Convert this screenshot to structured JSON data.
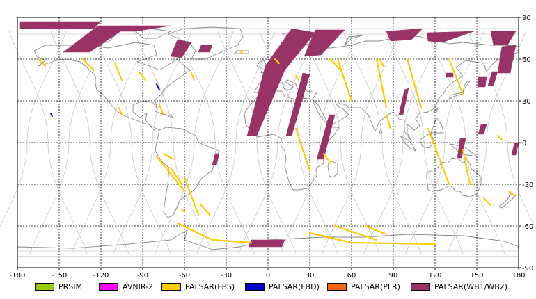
{
  "map": {
    "lon_ticks": [
      -180,
      -150,
      -120,
      -90,
      -60,
      -30,
      0,
      30,
      60,
      90,
      120,
      150,
      180
    ],
    "lat_ticks": [
      90,
      60,
      30,
      0,
      -30,
      -60,
      -90
    ],
    "lon_range": [
      -180,
      180
    ],
    "lat_range": [
      -90,
      90
    ],
    "grid": "dashed",
    "legend_position": "bottom"
  },
  "legend": [
    {
      "label": "PRSIM",
      "color": "#99cc00"
    },
    {
      "label": "AVNIR-2",
      "color": "#ff00ff"
    },
    {
      "label": "PALSAR(FBS)",
      "color": "#ffcc00"
    },
    {
      "label": "PALSAR(FBD)",
      "color": "#0000cc"
    },
    {
      "label": "PALSAR(PLR)",
      "color": "#ff6600"
    },
    {
      "label": "PALSAR(WB1/WB2)",
      "color": "#993366"
    }
  ],
  "swaths": [
    {
      "sensor": "PALSAR(WB1/WB2)",
      "points": [
        [
          -178,
          87
        ],
        [
          -120,
          87
        ],
        [
          -125,
          82
        ],
        [
          -178,
          82
        ]
      ]
    },
    {
      "sensor": "PALSAR(WB1/WB2)",
      "points": [
        [
          -122,
          84
        ],
        [
          -100,
          84
        ],
        [
          -128,
          65
        ],
        [
          -147,
          65
        ]
      ]
    },
    {
      "sensor": "PALSAR(WB1/WB2)",
      "points": [
        [
          -100,
          84
        ],
        [
          -70,
          84
        ],
        [
          -95,
          80
        ],
        [
          -112,
          80
        ]
      ]
    },
    {
      "sensor": "PALSAR(WB1/WB2)",
      "points": [
        [
          -65,
          74
        ],
        [
          -55,
          72
        ],
        [
          -62,
          61
        ],
        [
          -70,
          62
        ]
      ]
    },
    {
      "sensor": "PALSAR(WB1/WB2)",
      "points": [
        [
          -48,
          70
        ],
        [
          -40,
          70
        ],
        [
          -42,
          65
        ],
        [
          -50,
          65
        ]
      ]
    },
    {
      "sensor": "PALSAR(WB1/WB2)",
      "points": [
        [
          17,
          82
        ],
        [
          34,
          79
        ],
        [
          12,
          52
        ],
        [
          -8,
          5
        ],
        [
          -15,
          5
        ],
        [
          -2,
          55
        ]
      ]
    },
    {
      "sensor": "PALSAR(WB1/WB2)",
      "points": [
        [
          34,
          81
        ],
        [
          55,
          81
        ],
        [
          38,
          63
        ],
        [
          26,
          62
        ]
      ]
    },
    {
      "sensor": "PALSAR(WB1/WB2)",
      "points": [
        [
          25,
          50
        ],
        [
          30,
          49
        ],
        [
          17,
          5
        ],
        [
          13,
          5
        ]
      ]
    },
    {
      "sensor": "PALSAR(WB1/WB2)",
      "points": [
        [
          44,
          20
        ],
        [
          48,
          20
        ],
        [
          40,
          -12
        ],
        [
          35,
          -12
        ]
      ]
    },
    {
      "sensor": "PALSAR(WB1/WB2)",
      "points": [
        [
          85,
          80
        ],
        [
          111,
          82
        ],
        [
          103,
          74
        ],
        [
          88,
          73
        ]
      ]
    },
    {
      "sensor": "PALSAR(WB1/WB2)",
      "points": [
        [
          114,
          79
        ],
        [
          148,
          80
        ],
        [
          125,
          72
        ],
        [
          115,
          73
        ]
      ]
    },
    {
      "sensor": "PALSAR(WB1/WB2)",
      "points": [
        [
          160,
          80
        ],
        [
          178,
          80
        ],
        [
          172,
          70
        ],
        [
          162,
          70
        ]
      ]
    },
    {
      "sensor": "PALSAR(WB1/WB2)",
      "points": [
        [
          168,
          69
        ],
        [
          178,
          70
        ],
        [
          174,
          50
        ],
        [
          165,
          50
        ]
      ]
    },
    {
      "sensor": "PALSAR(WB1/WB2)",
      "points": [
        [
          98,
          38
        ],
        [
          101,
          39
        ],
        [
          97,
          20
        ],
        [
          94,
          20
        ]
      ]
    },
    {
      "sensor": "PALSAR(WB1/WB2)",
      "points": [
        [
          128,
          50
        ],
        [
          133,
          50
        ],
        [
          133,
          47
        ],
        [
          128,
          47
        ]
      ]
    },
    {
      "sensor": "PALSAR(WB1/WB2)",
      "points": [
        [
          161,
          51
        ],
        [
          165,
          51
        ],
        [
          162,
          41
        ],
        [
          158,
          41
        ]
      ]
    },
    {
      "sensor": "PALSAR(WB1/WB2)",
      "points": [
        [
          151,
          47
        ],
        [
          157,
          47
        ],
        [
          156,
          40
        ],
        [
          151,
          40
        ]
      ]
    },
    {
      "sensor": "PALSAR(WB1/WB2)",
      "points": [
        [
          153,
          13
        ],
        [
          157,
          13
        ],
        [
          155,
          6
        ],
        [
          151,
          6
        ]
      ]
    },
    {
      "sensor": "PALSAR(WB1/WB2)",
      "points": [
        [
          138,
          3
        ],
        [
          142,
          3
        ],
        [
          139,
          -11
        ],
        [
          136,
          -11
        ]
      ]
    },
    {
      "sensor": "PALSAR(WB1/WB2)",
      "points": [
        [
          177,
          0
        ],
        [
          180,
          0
        ],
        [
          178,
          -9
        ],
        [
          175,
          -9
        ]
      ]
    },
    {
      "sensor": "PALSAR(WB1/WB2)",
      "points": [
        [
          -38,
          -8
        ],
        [
          -35,
          -8
        ],
        [
          -37,
          -16
        ],
        [
          -40,
          -16
        ]
      ]
    },
    {
      "sensor": "PALSAR(WB1/WB2)",
      "points": [
        [
          -12,
          -70
        ],
        [
          12,
          -70
        ],
        [
          10,
          -75
        ],
        [
          -14,
          -75
        ]
      ]
    },
    {
      "sensor": "PALSAR(FBS)",
      "line": [
        [
          -65,
          -58
        ],
        [
          -40,
          -70
        ],
        [
          -12,
          -72
        ]
      ]
    },
    {
      "sensor": "PALSAR(FBS)",
      "line": [
        [
          30,
          -65
        ],
        [
          60,
          -72
        ],
        [
          120,
          -73
        ]
      ]
    },
    {
      "sensor": "PALSAR(FBS)",
      "line": [
        [
          48,
          -60
        ],
        [
          78,
          -70
        ]
      ]
    },
    {
      "sensor": "PALSAR(FBS)",
      "line": [
        [
          70,
          -60
        ],
        [
          85,
          -66
        ]
      ]
    },
    {
      "sensor": "PALSAR(FBS)",
      "line": [
        [
          -60,
          -25
        ],
        [
          -50,
          -52
        ]
      ]
    },
    {
      "sensor": "PALSAR(FBS)",
      "line": [
        [
          -48,
          -45
        ],
        [
          -42,
          -52
        ]
      ]
    },
    {
      "sensor": "PALSAR(FBS)",
      "line": [
        [
          -62,
          -48
        ],
        [
          -60,
          -50
        ]
      ]
    },
    {
      "sensor": "PALSAR(FBS)",
      "line": [
        [
          -80,
          -10
        ],
        [
          -60,
          -35
        ]
      ]
    },
    {
      "sensor": "PALSAR(FBS)",
      "line": [
        [
          -70,
          -18
        ],
        [
          -62,
          -30
        ]
      ]
    },
    {
      "sensor": "PALSAR(FBS)",
      "line": [
        [
          -75,
          -8
        ],
        [
          -68,
          -12
        ]
      ]
    },
    {
      "sensor": "PALSAR(FBS)",
      "line": [
        [
          -165,
          60
        ],
        [
          -160,
          55
        ]
      ]
    },
    {
      "sensor": "PALSAR(FBS)",
      "line": [
        [
          -133,
          60
        ],
        [
          -125,
          52
        ]
      ]
    },
    {
      "sensor": "PALSAR(FBS)",
      "line": [
        [
          -110,
          57
        ],
        [
          -105,
          45
        ]
      ]
    },
    {
      "sensor": "PALSAR(FBS)",
      "line": [
        [
          -107,
          25
        ],
        [
          -105,
          20
        ]
      ]
    },
    {
      "sensor": "PALSAR(FBS)",
      "line": [
        [
          -78,
          27
        ],
        [
          -75,
          20
        ]
      ]
    },
    {
      "sensor": "PALSAR(FBS)",
      "line": [
        [
          -92,
          50
        ],
        [
          -88,
          45
        ]
      ]
    },
    {
      "sensor": "PALSAR(FBS)",
      "line": [
        [
          -55,
          50
        ],
        [
          -53,
          45
        ]
      ]
    },
    {
      "sensor": "PALSAR(FBS)",
      "line": [
        [
          -20,
          66
        ],
        [
          -18,
          64
        ]
      ]
    },
    {
      "sensor": "PALSAR(FBS)",
      "line": [
        [
          5,
          60
        ],
        [
          8,
          57
        ]
      ]
    },
    {
      "sensor": "PALSAR(FBS)",
      "line": [
        [
          20,
          48
        ],
        [
          22,
          45
        ]
      ]
    },
    {
      "sensor": "PALSAR(FBS)",
      "line": [
        [
          20,
          10
        ],
        [
          30,
          -20
        ]
      ]
    },
    {
      "sensor": "PALSAR(FBS)",
      "line": [
        [
          40,
          -8
        ],
        [
          45,
          -15
        ]
      ]
    },
    {
      "sensor": "PALSAR(FBS)",
      "line": [
        [
          45,
          60
        ],
        [
          52,
          52
        ]
      ]
    },
    {
      "sensor": "PALSAR(FBS)",
      "line": [
        [
          50,
          60
        ],
        [
          60,
          30
        ]
      ]
    },
    {
      "sensor": "PALSAR(FBS)",
      "line": [
        [
          80,
          60
        ],
        [
          83,
          55
        ]
      ]
    },
    {
      "sensor": "PALSAR(FBS)",
      "line": [
        [
          78,
          60
        ],
        [
          85,
          25
        ]
      ]
    },
    {
      "sensor": "PALSAR(FBS)",
      "line": [
        [
          85,
          20
        ],
        [
          88,
          10
        ]
      ]
    },
    {
      "sensor": "PALSAR(FBS)",
      "line": [
        [
          100,
          60
        ],
        [
          110,
          25
        ]
      ]
    },
    {
      "sensor": "PALSAR(FBS)",
      "line": [
        [
          130,
          60
        ],
        [
          140,
          35
        ]
      ]
    },
    {
      "sensor": "PALSAR(FBS)",
      "line": [
        [
          115,
          10
        ],
        [
          130,
          -30
        ]
      ]
    },
    {
      "sensor": "PALSAR(FBS)",
      "line": [
        [
          140,
          -5
        ],
        [
          145,
          -30
        ]
      ]
    },
    {
      "sensor": "PALSAR(FBS)",
      "line": [
        [
          155,
          -40
        ],
        [
          160,
          -45
        ]
      ]
    },
    {
      "sensor": "PALSAR(FBS)",
      "line": [
        [
          165,
          5
        ],
        [
          168,
          2
        ]
      ]
    },
    {
      "sensor": "PALSAR(FBS)",
      "line": [
        [
          173,
          -35
        ],
        [
          177,
          -38
        ]
      ]
    },
    {
      "sensor": "PALSAR(FBD)",
      "line": [
        [
          -80,
          42
        ],
        [
          -78,
          38
        ]
      ]
    },
    {
      "sensor": "PALSAR(FBD)",
      "line": [
        [
          -156,
          21
        ],
        [
          -155,
          19
        ]
      ]
    }
  ]
}
